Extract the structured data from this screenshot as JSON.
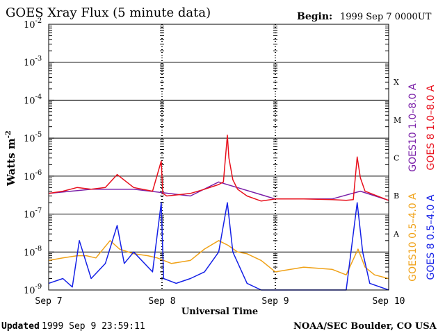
{
  "chart_data": {
    "type": "line",
    "title": "GOES Xray Flux (5 minute data)",
    "begin_label": "Begin:",
    "begin_value": "1999 Sep 7 0000UT",
    "ylabel": "Watts m",
    "ylabel_sup": "-2",
    "xlabel": "Universal Time",
    "y_scale": "log",
    "ylim": [
      1e-09,
      0.01
    ],
    "y_ticks": [
      {
        "exp": "-9",
        "base": "10"
      },
      {
        "exp": "-8",
        "base": "10"
      },
      {
        "exp": "-7",
        "base": "10"
      },
      {
        "exp": "-6",
        "base": "10"
      },
      {
        "exp": "-5",
        "base": "10"
      },
      {
        "exp": "-4",
        "base": "10"
      },
      {
        "exp": "-3",
        "base": "10"
      },
      {
        "exp": "-2",
        "base": "10"
      }
    ],
    "x_tick_labels": [
      "Sep 7",
      "Sep 8",
      "Sep 9",
      "Sep 10"
    ],
    "xlim": [
      "1999-09-07T00:00",
      "1999-09-10T00:00"
    ],
    "grid": true,
    "flare_classes": [
      {
        "label": "A",
        "level": 1e-08
      },
      {
        "label": "B",
        "level": 1e-07
      },
      {
        "label": "C",
        "level": 1e-06
      },
      {
        "label": "M",
        "level": 1e-05
      },
      {
        "label": "X",
        "level": 0.0001
      }
    ],
    "series": [
      {
        "name": "GOES10 1.0–8.0 A",
        "color": "#7a1fa8",
        "x": [
          "1999-09-07T00:00",
          "1999-09-07T09:00",
          "1999-09-07T18:00",
          "1999-09-08T06:00",
          "1999-09-08T12:00",
          "1999-09-09T00:00",
          "1999-09-09T12:00",
          "1999-09-09T18:00",
          "1999-09-10T00:00"
        ],
        "y": [
          3.5e-07,
          4.5e-07,
          4.5e-07,
          3e-07,
          7e-07,
          2.5e-07,
          2.5e-07,
          4e-07,
          2.3e-07
        ]
      },
      {
        "name": "GOES 8 1.0–8.0 A",
        "color": "#e8101c",
        "x": [
          "1999-09-07T00:00",
          "1999-09-07T03:00",
          "1999-09-07T06:00",
          "1999-09-07T09:00",
          "1999-09-07T12:00",
          "1999-09-07T14:30",
          "1999-09-07T18:00",
          "1999-09-07T22:00",
          "1999-09-07T23:50",
          "1999-09-08T00:10",
          "1999-09-08T01:00",
          "1999-09-08T06:00",
          "1999-09-08T09:00",
          "1999-09-08T12:00",
          "1999-09-08T13:00",
          "1999-09-08T13:50",
          "1999-09-08T14:10",
          "1999-09-08T15:00",
          "1999-09-08T16:00",
          "1999-09-08T18:00",
          "1999-09-08T21:00",
          "1999-09-09T00:00",
          "1999-09-09T06:00",
          "1999-09-09T12:00",
          "1999-09-09T15:00",
          "1999-09-09T16:30",
          "1999-09-09T17:20",
          "1999-09-09T18:00",
          "1999-09-09T19:00",
          "1999-09-09T21:00",
          "1999-09-10T00:00"
        ],
        "y": [
          3.5e-07,
          4e-07,
          5e-07,
          4.5e-07,
          5e-07,
          1.1e-06,
          5e-07,
          4e-07,
          2.5e-06,
          3.5e-07,
          3e-07,
          3.5e-07,
          4.5e-07,
          6e-07,
          7e-07,
          1.2e-05,
          3e-06,
          8e-07,
          4.5e-07,
          3e-07,
          2.2e-07,
          2.5e-07,
          2.5e-07,
          2.4e-07,
          2.3e-07,
          2.4e-07,
          3.2e-06,
          9e-07,
          4e-07,
          3.2e-07,
          2.3e-07
        ]
      },
      {
        "name": "GOES10 0.5–4.0 A",
        "color": "#f0a218",
        "x": [
          "1999-09-07T00:00",
          "1999-09-07T03:00",
          "1999-09-07T06:00",
          "1999-09-07T08:00",
          "1999-09-07T10:00",
          "1999-09-07T13:00",
          "1999-09-07T15:00",
          "1999-09-07T18:00",
          "1999-09-07T21:00",
          "1999-09-07T23:00",
          "1999-09-08T02:00",
          "1999-09-08T06:00",
          "1999-09-08T09:00",
          "1999-09-08T12:00",
          "1999-09-08T14:00",
          "1999-09-08T16:00",
          "1999-09-08T18:00",
          "1999-09-08T21:00",
          "1999-09-09T00:00",
          "1999-09-09T06:00",
          "1999-09-09T12:00",
          "1999-09-09T15:00",
          "1999-09-09T17:30",
          "1999-09-09T19:00",
          "1999-09-09T21:00",
          "1999-09-10T00:00"
        ],
        "y": [
          6e-09,
          7e-09,
          8e-09,
          8e-09,
          7e-09,
          2e-08,
          1.2e-08,
          9e-09,
          8e-09,
          7e-09,
          5e-09,
          6e-09,
          1.2e-08,
          2e-08,
          1.5e-08,
          1e-08,
          9e-09,
          6e-09,
          3e-09,
          4e-09,
          3.5e-09,
          2.5e-09,
          1.2e-08,
          4e-09,
          2.5e-09,
          2e-09
        ]
      },
      {
        "name": "GOES 8 0.5–4.0 A",
        "color": "#1420e6",
        "x": [
          "1999-09-07T00:00",
          "1999-09-07T03:00",
          "1999-09-07T05:00",
          "1999-09-07T06:30",
          "1999-09-07T09:00",
          "1999-09-07T12:00",
          "1999-09-07T14:30",
          "1999-09-07T16:00",
          "1999-09-07T18:00",
          "1999-09-07T22:00",
          "1999-09-07T23:50",
          "1999-09-08T00:20",
          "1999-09-08T03:00",
          "1999-09-08T06:00",
          "1999-09-08T09:00",
          "1999-09-08T12:00",
          "1999-09-08T13:50",
          "1999-09-08T15:00",
          "1999-09-08T18:00",
          "1999-09-08T21:00",
          "1999-09-09T00:00",
          "1999-09-09T06:00",
          "1999-09-09T12:00",
          "1999-09-09T15:00",
          "1999-09-09T17:20",
          "1999-09-09T18:30",
          "1999-09-09T20:00",
          "1999-09-10T00:00"
        ],
        "y": [
          1.5e-09,
          2e-09,
          1.2e-09,
          2e-08,
          2e-09,
          5e-09,
          5e-08,
          5e-09,
          1e-08,
          3e-09,
          2e-07,
          2e-09,
          1.5e-09,
          2e-09,
          3e-09,
          1e-08,
          2e-07,
          1e-08,
          1.5e-09,
          1e-09,
          1e-09,
          1e-09,
          1e-09,
          1e-09,
          2e-07,
          1e-08,
          1.5e-09,
          1e-09
        ]
      }
    ]
  },
  "footer": {
    "updated_label": "Updated",
    "updated_value": "1999 Sep  9 23:59:11",
    "credit": "NOAA/SEC Boulder, CO USA"
  }
}
